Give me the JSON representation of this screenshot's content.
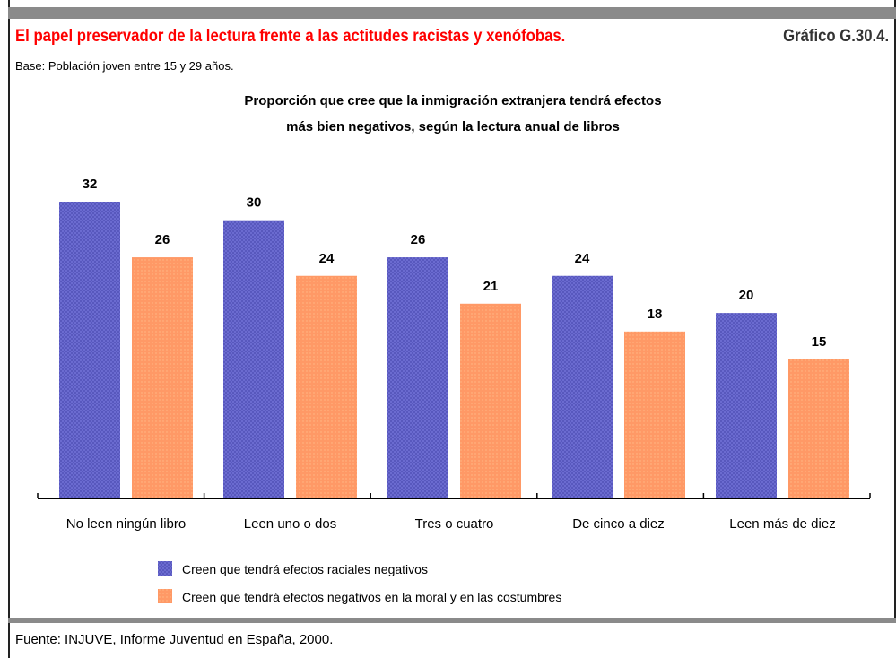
{
  "header": {
    "title": "El papel preservador de la lectura frente a las actitudes racistas y xenófobas.",
    "chart_code": "Gráfico G.30.4.",
    "base": "Base: Población joven entre 15 y 29 años."
  },
  "footer": {
    "source": "Fuente: INJUVE, Informe Juventud en España, 2000."
  },
  "colors": {
    "series_1": "#5555bb",
    "series_2": "#ff9966",
    "frame": "#8a8a8a",
    "title": "#ff0000"
  },
  "chart_data": {
    "type": "bar",
    "title_lines": [
      "Proporción que cree que la inmigración extranjera tendrá efectos",
      "más bien negativos, según la lectura anual de libros"
    ],
    "categories": [
      "No leen ningún libro",
      "Leen uno o dos",
      "Tres o cuatro",
      "De cinco a diez",
      "Leen más de diez"
    ],
    "series": [
      {
        "name": "Creen que tendrá efectos raciales negativos",
        "values": [
          32,
          30,
          26,
          24,
          20
        ]
      },
      {
        "name": "Creen que tendrá efectos negativos en la moral y en las costumbres",
        "values": [
          26,
          24,
          21,
          18,
          15
        ]
      }
    ],
    "ylim": [
      0,
      32
    ],
    "grid": false,
    "legend_position": "bottom-center",
    "data_labels": true
  }
}
